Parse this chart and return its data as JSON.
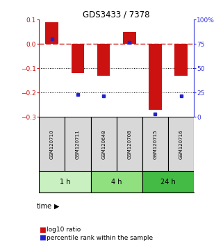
{
  "title": "GDS3433 / 7378",
  "samples": [
    "GSM120710",
    "GSM120711",
    "GSM120648",
    "GSM120708",
    "GSM120715",
    "GSM120716"
  ],
  "log10_ratio": [
    0.09,
    -0.12,
    -0.13,
    0.05,
    -0.27,
    -0.13
  ],
  "percentile_rank": [
    80,
    23,
    22,
    77,
    3,
    22
  ],
  "time_groups": [
    {
      "label": "1 h",
      "start": 0,
      "end": 2,
      "color": "#c8f0c0"
    },
    {
      "label": "4 h",
      "start": 2,
      "end": 4,
      "color": "#90e080"
    },
    {
      "label": "24 h",
      "start": 4,
      "end": 6,
      "color": "#44bb44"
    }
  ],
  "ylim_left": [
    -0.3,
    0.1
  ],
  "ylim_right": [
    0,
    100
  ],
  "yticks_left": [
    -0.3,
    -0.2,
    -0.1,
    0.0,
    0.1
  ],
  "yticks_right": [
    0,
    25,
    50,
    75,
    100
  ],
  "bar_color": "#cc1111",
  "dot_color": "#2222cc",
  "zero_line_color": "#cc2222",
  "grid_color": "#000000",
  "bar_width": 0.5,
  "background_color": "#ffffff",
  "sample_box_color": "#d8d8d8"
}
